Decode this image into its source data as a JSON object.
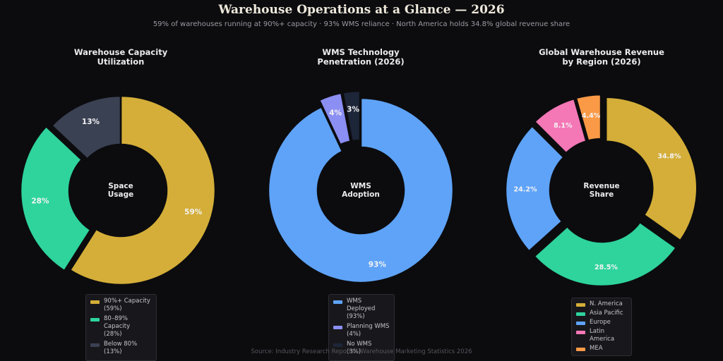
{
  "title": "Warehouse Operations at a Glance — 2026",
  "subtitle": "59% of warehouses running at 90%+ capacity · 93% WMS reliance · North America holds 34.8% global revenue share",
  "source": "Source: Industry Research Reports · Warehouse Marketing Statistics 2026",
  "chart_data": [
    {
      "type": "pie",
      "variant": "donut",
      "title": "Warehouse Capacity\nUtilization",
      "center_label": "Space\nUsage",
      "legend_position": "bottom-center",
      "slices": [
        {
          "label": "90%+ Capacity",
          "legend_value": "(59%)",
          "value": 59,
          "data_label": "59%",
          "color": "#d4ae38",
          "explode": false
        },
        {
          "label": "80–89% Capacity",
          "legend_value": "(28%)",
          "value": 28,
          "data_label": "28%",
          "color": "#2ed49c",
          "explode": true
        },
        {
          "label": "Below 80%",
          "legend_value": "(13%)",
          "value": 13,
          "data_label": "13%",
          "color": "#3a4152",
          "explode": false
        }
      ]
    },
    {
      "type": "pie",
      "variant": "donut",
      "title": "WMS Technology\nPenetration (2026)",
      "center_label": "WMS\nAdoption",
      "legend_position": "bottom-center",
      "slices": [
        {
          "label": "WMS Deployed",
          "legend_value": "(93%)",
          "value": 93,
          "data_label": "93%",
          "color": "#5ea3f8",
          "explode": false
        },
        {
          "label": "Planning WMS",
          "legend_value": "(4%)",
          "value": 4,
          "data_label": "4%",
          "color": "#8b8ef2",
          "explode": true
        },
        {
          "label": "No WMS",
          "legend_value": "(3%)",
          "value": 3,
          "data_label": "3%",
          "color": "#1d2638",
          "explode": true
        }
      ]
    },
    {
      "type": "pie",
      "variant": "donut",
      "title": "Global Warehouse Revenue\nby Region (2026)",
      "center_label": "Revenue\nShare",
      "legend_position": "bottom-center",
      "slices": [
        {
          "label": "N. America",
          "value": 34.8,
          "data_label": "34.8%",
          "color": "#d4ae38",
          "explode": true
        },
        {
          "label": "Asia Pacific",
          "value": 28.5,
          "data_label": "28.5%",
          "color": "#2ed49c",
          "explode": true
        },
        {
          "label": "Europe",
          "value": 24.2,
          "data_label": "24.2%",
          "color": "#5ea3f8",
          "explode": true
        },
        {
          "label": "Latin America",
          "value": 8.1,
          "data_label": "8.1%",
          "color": "#f477b6",
          "explode": true
        },
        {
          "label": "MEA",
          "value": 4.4,
          "data_label": "4.4%",
          "color": "#fa9a46",
          "explode": true
        }
      ]
    }
  ]
}
